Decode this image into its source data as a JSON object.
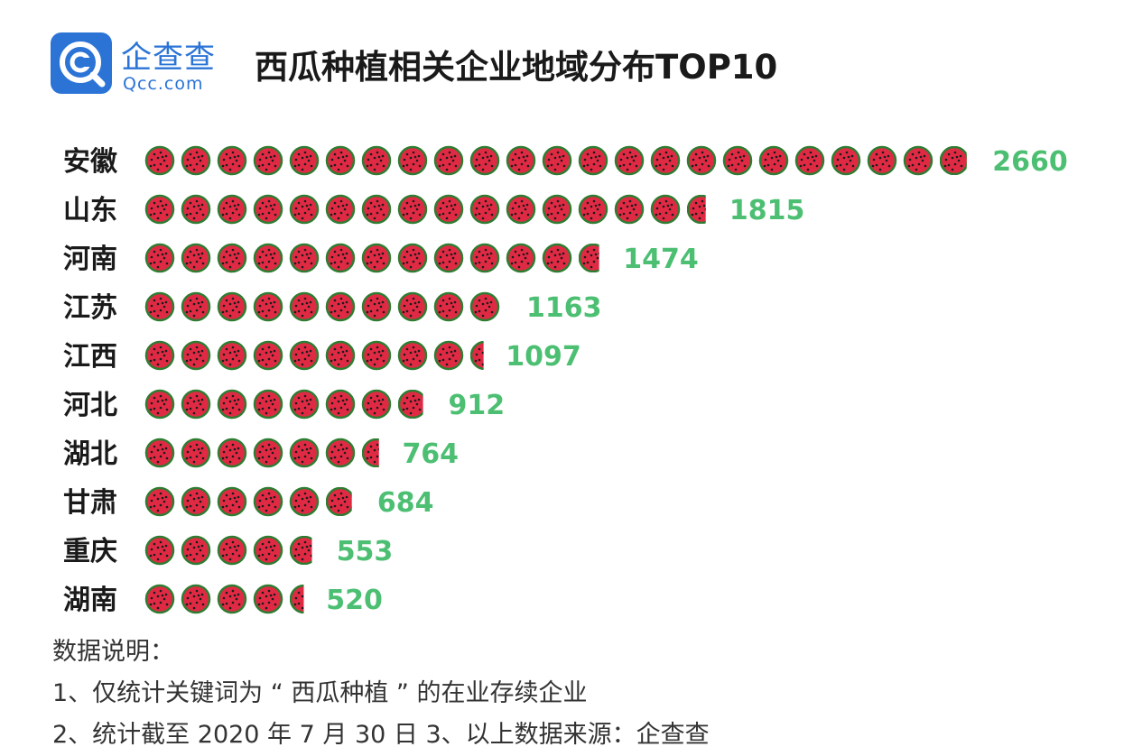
{
  "logo": {
    "cn": "企查查",
    "en": "Qcc.com",
    "icon": "qcc-logo-icon"
  },
  "title": "西瓜种植相关企业地域分布TOP10",
  "colors": {
    "flesh": "#e02a44",
    "rind": "#2e7d32",
    "seed": "#1b1b1b",
    "value_label": "#4cbf72",
    "logo_blue": "#2b74d6"
  },
  "chart_data": {
    "type": "bar",
    "style": "pictogram-watermelon",
    "categories": [
      "安徽",
      "山东",
      "河南",
      "江苏",
      "江西",
      "河北",
      "湖北",
      "甘肃",
      "重庆",
      "湖南"
    ],
    "values": [
      2660,
      1815,
      1474,
      1163,
      1097,
      912,
      764,
      684,
      553,
      520
    ],
    "unit_per_icon": 116,
    "title": "西瓜种植相关企业地域分布TOP10"
  },
  "notes": {
    "heading": "数据说明：",
    "line1": "1、仅统计关键词为 “ 西瓜种植 ” 的在业存续企业",
    "line2": "2、统计截至 2020 年 7 月 30 日    3、以上数据来源：企查查"
  }
}
